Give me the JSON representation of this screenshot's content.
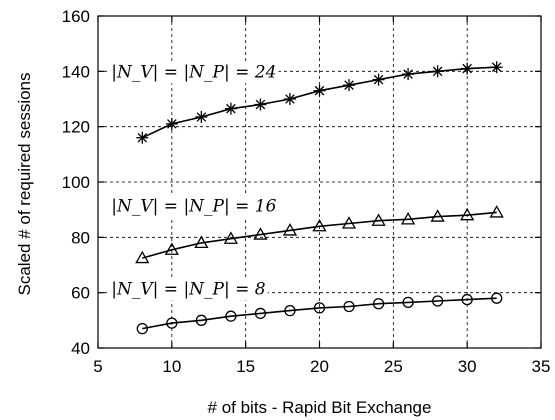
{
  "chart_data": {
    "type": "line",
    "title": "",
    "xlabel": "# of bits - Rapid Bit Exchange",
    "ylabel": "Scaled # of required sessions",
    "xlim": [
      5,
      35
    ],
    "ylim": [
      40,
      160
    ],
    "xticks": [
      5,
      10,
      15,
      20,
      25,
      30,
      35
    ],
    "yticks": [
      40,
      60,
      80,
      100,
      120,
      140,
      160
    ],
    "grid": true,
    "legend": "none",
    "x": [
      8,
      10,
      12,
      14,
      16,
      18,
      20,
      22,
      24,
      26,
      28,
      30,
      32
    ],
    "series": [
      {
        "marker": "star",
        "values": [
          116,
          121,
          123.5,
          126.5,
          128,
          130,
          133,
          135,
          137,
          139,
          140,
          141,
          141.5
        ]
      },
      {
        "marker": "triangle",
        "values": [
          72.5,
          75.5,
          78,
          79.5,
          81,
          82.5,
          84,
          85,
          86,
          86.5,
          87.5,
          88,
          89
        ]
      },
      {
        "marker": "circle",
        "values": [
          47,
          49,
          50,
          51.5,
          52.5,
          53.5,
          54.5,
          55,
          56,
          56.5,
          57,
          57.5,
          58
        ]
      }
    ],
    "annotations": [
      {
        "text": "|N_V| = |N_P| = 24",
        "x": 5.9,
        "y": 140
      },
      {
        "text": "|N_V| = |N_P| = 16",
        "x": 5.9,
        "y": 91.5
      },
      {
        "text": "|N_V| = |N_P| = 8",
        "x": 5.9,
        "y": 61.5
      }
    ]
  }
}
